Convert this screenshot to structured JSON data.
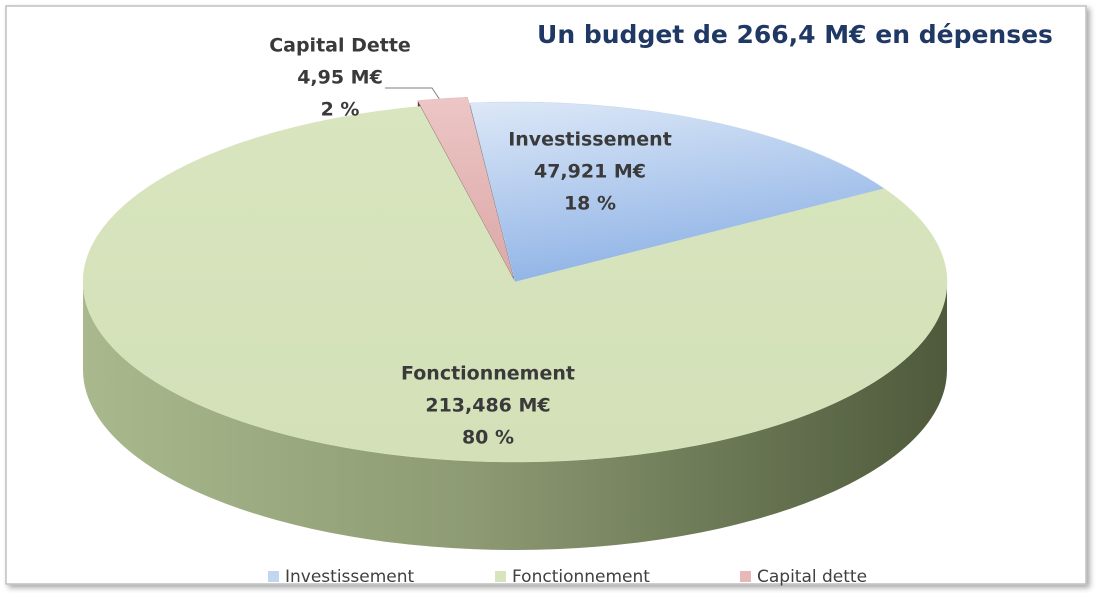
{
  "chart_data": {
    "type": "pie",
    "title": "Un budget de 266,4 M€ en dépenses",
    "categories": [
      "Investissement",
      "Fonctionnement",
      "Capital dette"
    ],
    "slice_labels": [
      "Investissement",
      "Fonctionnement",
      "Capital Dette"
    ],
    "values": [
      47.921,
      213.486,
      4.95
    ],
    "value_labels": [
      "47,921 M€",
      "213,486  M€",
      "4,95 M€"
    ],
    "percent_labels": [
      "18 %",
      "80 %",
      "2 %"
    ],
    "colors": [
      "#c3d6ef",
      "#d7e4bd",
      "#e6b9b8"
    ],
    "legend": "bottom"
  }
}
